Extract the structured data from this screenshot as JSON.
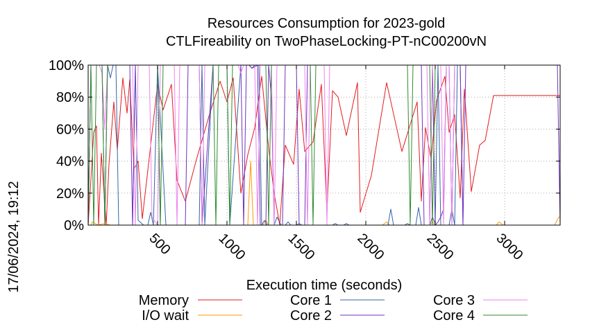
{
  "chart_data": {
    "type": "line",
    "title": "Resources Consumption for 2023-gold",
    "subtitle": "CTLFireability on TwoPhaseLocking-PT-nC00200vN",
    "xlabel": "Execution time (seconds)",
    "ylabel": "",
    "side_label": "17/06/2024, 19:12",
    "xlim": [
      0,
      3400
    ],
    "ylim": [
      0,
      100
    ],
    "x_ticks": [
      500,
      1000,
      1500,
      2000,
      2500,
      3000
    ],
    "y_ticks": [
      0,
      20,
      40,
      60,
      80,
      100
    ],
    "y_tick_labels": [
      "0%",
      "20%",
      "40%",
      "60%",
      "80%",
      "100%"
    ],
    "grid": true,
    "legend_position": "bottom",
    "series": [
      {
        "name": "Memory",
        "color": "#e41a1c",
        "points": [
          [
            0,
            0
          ],
          [
            40,
            58
          ],
          [
            60,
            62
          ],
          [
            75,
            0
          ],
          [
            95,
            45
          ],
          [
            130,
            0
          ],
          [
            150,
            38
          ],
          [
            185,
            77
          ],
          [
            210,
            47
          ],
          [
            250,
            92
          ],
          [
            280,
            70
          ],
          [
            300,
            91
          ],
          [
            330,
            35
          ],
          [
            360,
            40
          ],
          [
            390,
            4
          ],
          [
            440,
            42
          ],
          [
            500,
            88
          ],
          [
            540,
            72
          ],
          [
            600,
            88
          ],
          [
            640,
            28
          ],
          [
            700,
            15
          ],
          [
            780,
            41
          ],
          [
            870,
            68
          ],
          [
            950,
            90
          ],
          [
            1000,
            77
          ],
          [
            1045,
            92
          ],
          [
            1100,
            20
          ],
          [
            1150,
            44
          ],
          [
            1200,
            61
          ],
          [
            1250,
            93
          ],
          [
            1300,
            48
          ],
          [
            1340,
            20
          ],
          [
            1380,
            0
          ],
          [
            1420,
            50
          ],
          [
            1480,
            38
          ],
          [
            1520,
            85
          ],
          [
            1560,
            46
          ],
          [
            1620,
            52
          ],
          [
            1680,
            88
          ],
          [
            1720,
            8
          ],
          [
            1760,
            84
          ],
          [
            1800,
            80
          ],
          [
            1860,
            56
          ],
          [
            1940,
            89
          ],
          [
            1960,
            8
          ],
          [
            2040,
            31
          ],
          [
            2150,
            89
          ],
          [
            2260,
            46
          ],
          [
            2370,
            77
          ],
          [
            2400,
            15
          ],
          [
            2430,
            61
          ],
          [
            2470,
            41
          ],
          [
            2510,
            78
          ],
          [
            2570,
            93
          ],
          [
            2600,
            58
          ],
          [
            2640,
            69
          ],
          [
            2680,
            17
          ],
          [
            2710,
            85
          ],
          [
            2760,
            21
          ],
          [
            2820,
            50
          ],
          [
            2860,
            53
          ],
          [
            2920,
            81
          ],
          [
            3400,
            81
          ]
        ]
      },
      {
        "name": "I/O wait",
        "color": "#ff9900",
        "points": [
          [
            0,
            0
          ],
          [
            20,
            0
          ],
          [
            30,
            2
          ],
          [
            50,
            1
          ],
          [
            70,
            0
          ],
          [
            120,
            1
          ],
          [
            160,
            0
          ],
          [
            500,
            0
          ],
          [
            1120,
            0
          ],
          [
            1150,
            0
          ],
          [
            1170,
            40
          ],
          [
            1190,
            0
          ],
          [
            1260,
            0
          ],
          [
            1280,
            3
          ],
          [
            1300,
            0
          ],
          [
            2120,
            0
          ],
          [
            2150,
            2
          ],
          [
            2170,
            0
          ],
          [
            2460,
            0
          ],
          [
            2480,
            2
          ],
          [
            2500,
            0
          ],
          [
            2940,
            0
          ],
          [
            2960,
            2
          ],
          [
            2990,
            0
          ],
          [
            3360,
            0
          ],
          [
            3390,
            5
          ],
          [
            3400,
            5
          ]
        ]
      },
      {
        "name": "Core 1",
        "color": "#3465a4",
        "points": [
          [
            0,
            0
          ],
          [
            20,
            100
          ],
          [
            140,
            100
          ],
          [
            160,
            92
          ],
          [
            180,
            100
          ],
          [
            200,
            100
          ],
          [
            220,
            0
          ],
          [
            320,
            0
          ],
          [
            340,
            100
          ],
          [
            360,
            3
          ],
          [
            400,
            0
          ],
          [
            430,
            0
          ],
          [
            450,
            8
          ],
          [
            470,
            0
          ],
          [
            500,
            100
          ],
          [
            560,
            0
          ],
          [
            800,
            0
          ],
          [
            820,
            100
          ],
          [
            840,
            0
          ],
          [
            900,
            100
          ],
          [
            1000,
            100
          ],
          [
            1020,
            0
          ],
          [
            1100,
            100
          ],
          [
            1160,
            100
          ],
          [
            1180,
            98
          ],
          [
            1200,
            100
          ],
          [
            1230,
            100
          ],
          [
            1250,
            0
          ],
          [
            1270,
            3
          ],
          [
            1290,
            0
          ],
          [
            1340,
            0
          ],
          [
            1360,
            5
          ],
          [
            1390,
            0
          ],
          [
            1420,
            0
          ],
          [
            1440,
            2
          ],
          [
            1460,
            0
          ],
          [
            1500,
            0
          ],
          [
            1520,
            1
          ],
          [
            1540,
            0
          ],
          [
            1760,
            0
          ],
          [
            1780,
            1
          ],
          [
            1800,
            0
          ],
          [
            1840,
            0
          ],
          [
            1860,
            1
          ],
          [
            1880,
            0
          ],
          [
            2160,
            0
          ],
          [
            2180,
            10
          ],
          [
            2200,
            0
          ],
          [
            2280,
            0
          ],
          [
            2300,
            1
          ],
          [
            2320,
            0
          ],
          [
            2360,
            0
          ],
          [
            2380,
            11
          ],
          [
            2400,
            0
          ],
          [
            2460,
            0
          ],
          [
            2480,
            5
          ],
          [
            2500,
            1
          ],
          [
            2520,
            100
          ],
          [
            2540,
            0
          ],
          [
            2600,
            0
          ],
          [
            2620,
            10
          ],
          [
            2640,
            0
          ],
          [
            2660,
            100
          ],
          [
            2680,
            100
          ],
          [
            2700,
            0
          ],
          [
            3380,
            0
          ],
          [
            3400,
            0
          ]
        ]
      },
      {
        "name": "Core 2",
        "color": "#7030c0",
        "points": [
          [
            0,
            0
          ],
          [
            20,
            100
          ],
          [
            100,
            100
          ],
          [
            120,
            0
          ],
          [
            140,
            100
          ],
          [
            300,
            100
          ],
          [
            320,
            0
          ],
          [
            340,
            100
          ],
          [
            500,
            100
          ],
          [
            520,
            0
          ],
          [
            700,
            0
          ],
          [
            720,
            100
          ],
          [
            800,
            100
          ],
          [
            820,
            0
          ],
          [
            900,
            100
          ],
          [
            1100,
            100
          ],
          [
            1120,
            0
          ],
          [
            1140,
            100
          ],
          [
            1160,
            100
          ],
          [
            1180,
            98
          ],
          [
            1220,
            100
          ],
          [
            1240,
            0
          ],
          [
            1280,
            0
          ],
          [
            1300,
            100
          ],
          [
            1320,
            80
          ],
          [
            1340,
            0
          ],
          [
            1400,
            0
          ],
          [
            1420,
            100
          ],
          [
            1500,
            100
          ],
          [
            1520,
            0
          ],
          [
            1560,
            0
          ],
          [
            1580,
            100
          ],
          [
            2400,
            100
          ],
          [
            2420,
            0
          ],
          [
            2460,
            0
          ],
          [
            2480,
            100
          ],
          [
            2500,
            0
          ],
          [
            2520,
            2
          ],
          [
            2540,
            5
          ],
          [
            2560,
            10
          ],
          [
            2580,
            100
          ],
          [
            2600,
            100
          ],
          [
            2620,
            0
          ],
          [
            2640,
            100
          ],
          [
            2680,
            100
          ],
          [
            2700,
            0
          ],
          [
            2720,
            100
          ],
          [
            3380,
            100
          ],
          [
            3400,
            0
          ]
        ]
      },
      {
        "name": "Core 3",
        "color": "#ee82ee",
        "points": [
          [
            0,
            0
          ],
          [
            20,
            100
          ],
          [
            80,
            100
          ],
          [
            100,
            95
          ],
          [
            120,
            60
          ],
          [
            140,
            100
          ],
          [
            320,
            100
          ],
          [
            340,
            0
          ],
          [
            360,
            100
          ],
          [
            440,
            100
          ],
          [
            460,
            5
          ],
          [
            500,
            0
          ],
          [
            520,
            100
          ],
          [
            620,
            100
          ],
          [
            640,
            0
          ],
          [
            660,
            100
          ],
          [
            800,
            100
          ],
          [
            820,
            0
          ],
          [
            840,
            100
          ],
          [
            1080,
            100
          ],
          [
            1100,
            95
          ],
          [
            1120,
            100
          ],
          [
            1200,
            100
          ],
          [
            1220,
            0
          ],
          [
            1240,
            100
          ],
          [
            1320,
            100
          ],
          [
            1340,
            0
          ],
          [
            1360,
            100
          ],
          [
            1560,
            100
          ],
          [
            1580,
            0
          ],
          [
            1600,
            100
          ],
          [
            1700,
            100
          ],
          [
            1720,
            0
          ],
          [
            1740,
            100
          ],
          [
            2440,
            100
          ],
          [
            2460,
            0
          ],
          [
            2480,
            100
          ],
          [
            2540,
            100
          ],
          [
            2560,
            0
          ],
          [
            2580,
            100
          ],
          [
            2600,
            100
          ],
          [
            2620,
            0
          ],
          [
            2640,
            100
          ],
          [
            3400,
            100
          ]
        ]
      },
      {
        "name": "Core 4",
        "color": "#2e8b2e",
        "points": [
          [
            0,
            0
          ],
          [
            20,
            100
          ],
          [
            40,
            0
          ],
          [
            60,
            100
          ],
          [
            100,
            100
          ],
          [
            120,
            0
          ],
          [
            140,
            100
          ],
          [
            500,
            100
          ],
          [
            520,
            0
          ],
          [
            540,
            100
          ],
          [
            900,
            100
          ],
          [
            920,
            0
          ],
          [
            940,
            100
          ],
          [
            1000,
            100
          ],
          [
            1020,
            0
          ],
          [
            1040,
            100
          ],
          [
            1280,
            100
          ],
          [
            1300,
            0
          ],
          [
            1320,
            100
          ],
          [
            1600,
            100
          ],
          [
            1620,
            0
          ],
          [
            1640,
            100
          ],
          [
            2300,
            100
          ],
          [
            2320,
            0
          ],
          [
            2340,
            100
          ],
          [
            2460,
            100
          ],
          [
            2480,
            0
          ],
          [
            2500,
            100
          ],
          [
            3400,
            100
          ]
        ]
      }
    ]
  }
}
